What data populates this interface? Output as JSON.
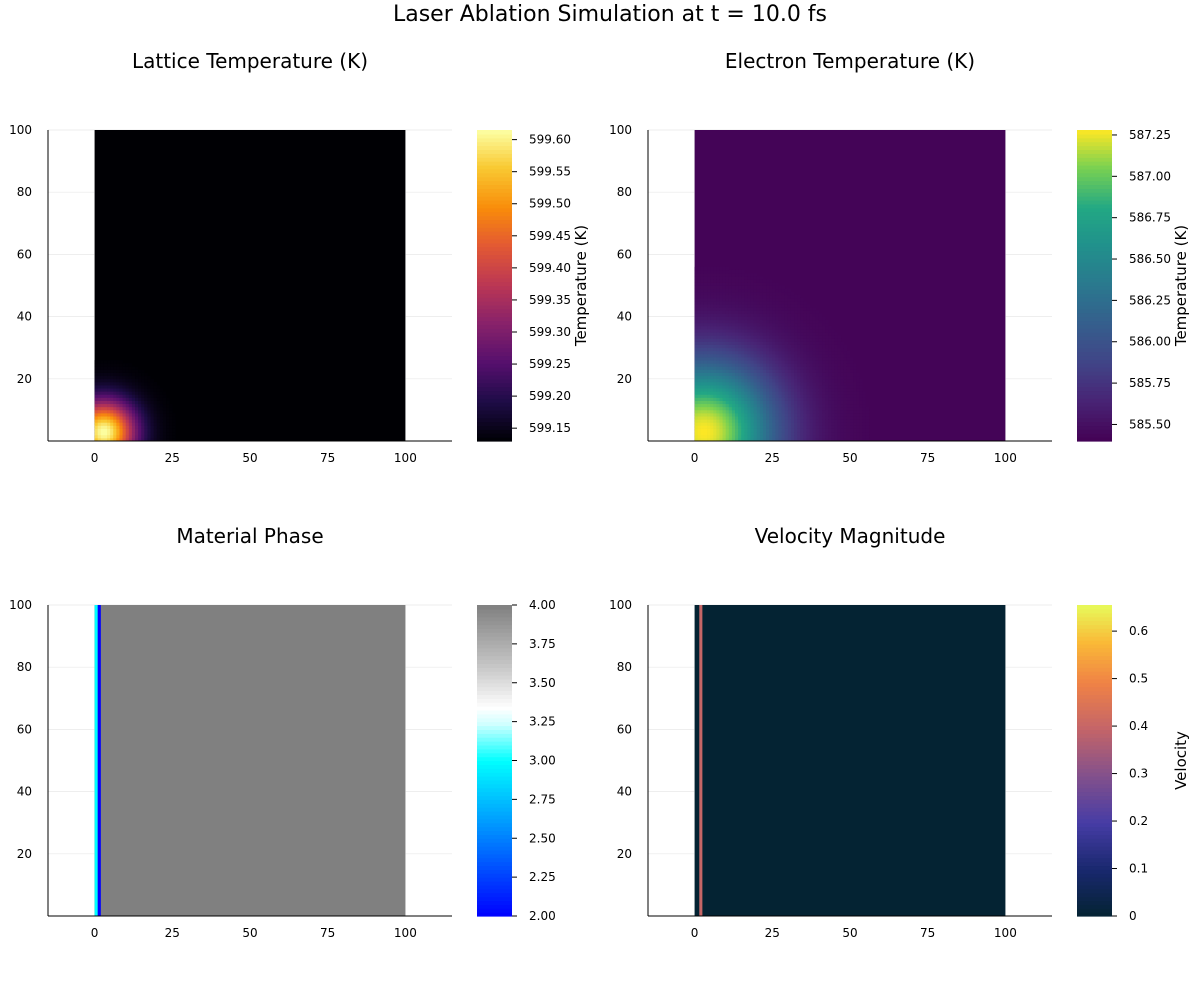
{
  "figure": {
    "title": "Laser Ablation Simulation at t = 10.0 fs"
  },
  "chart_data": [
    {
      "type": "heatmap",
      "title": "Lattice Temperature (K)",
      "colormap": "inferno",
      "x_ticks": [
        "0",
        "25",
        "50",
        "75",
        "100"
      ],
      "y_ticks": [
        "20",
        "40",
        "60",
        "80",
        "100"
      ],
      "xlim": [
        -15,
        115
      ],
      "ylim": [
        0,
        100
      ],
      "data_extent": {
        "x": [
          0,
          100
        ],
        "y": [
          0,
          100
        ]
      },
      "colorbar": {
        "label": "Temperature (K)",
        "min": 599.13,
        "max": 599.615,
        "ticks": [
          "599.15",
          "599.20",
          "599.25",
          "599.30",
          "599.35",
          "599.40",
          "599.45",
          "599.50",
          "599.55",
          "599.60"
        ]
      },
      "field": {
        "kind": "hotspot",
        "background": 599.13,
        "peak": 599.615,
        "center": [
          3,
          3
        ],
        "radius": 7
      }
    },
    {
      "type": "heatmap",
      "title": "Electron Temperature (K)",
      "colormap": "viridis",
      "x_ticks": [
        "0",
        "25",
        "50",
        "75",
        "100"
      ],
      "y_ticks": [
        "20",
        "40",
        "60",
        "80",
        "100"
      ],
      "xlim": [
        -15,
        115
      ],
      "ylim": [
        0,
        100
      ],
      "data_extent": {
        "x": [
          0,
          100
        ],
        "y": [
          0,
          100
        ]
      },
      "colorbar": {
        "label": "Temperature (K)",
        "min": 585.4,
        "max": 587.28,
        "ticks": [
          "585.50",
          "585.75",
          "586.00",
          "586.25",
          "586.50",
          "586.75",
          "587.00",
          "587.25"
        ]
      },
      "field": {
        "kind": "hotspot",
        "background": 585.42,
        "peak": 587.28,
        "center": [
          3,
          3
        ],
        "radius": 16
      }
    },
    {
      "type": "heatmap",
      "title": "Material Phase",
      "colormap": "phase",
      "x_ticks": [
        "0",
        "25",
        "50",
        "75",
        "100"
      ],
      "y_ticks": [
        "20",
        "40",
        "60",
        "80",
        "100"
      ],
      "xlim": [
        -15,
        115
      ],
      "ylim": [
        0,
        100
      ],
      "data_extent": {
        "x": [
          0,
          100
        ],
        "y": [
          0,
          100
        ]
      },
      "colorbar": {
        "label": "",
        "min": 2.0,
        "max": 4.0,
        "ticks": [
          "2.00",
          "2.25",
          "2.50",
          "2.75",
          "3.00",
          "3.25",
          "3.50",
          "3.75",
          "4.00"
        ]
      },
      "field": {
        "kind": "columns",
        "background": 4.0,
        "columns": [
          {
            "x": [
              0,
              1
            ],
            "value": 3.0
          },
          {
            "x": [
              1,
              2
            ],
            "value": 2.0
          }
        ]
      }
    },
    {
      "type": "heatmap",
      "title": "Velocity Magnitude",
      "colormap": "thermal",
      "x_ticks": [
        "0",
        "25",
        "50",
        "75",
        "100"
      ],
      "y_ticks": [
        "20",
        "40",
        "60",
        "80",
        "100"
      ],
      "xlim": [
        -15,
        115
      ],
      "ylim": [
        0,
        100
      ],
      "data_extent": {
        "x": [
          0,
          100
        ],
        "y": [
          0,
          100
        ]
      },
      "colorbar": {
        "label": "Velocity",
        "min": 0.0,
        "max": 0.655,
        "ticks": [
          "0",
          "0.1",
          "0.2",
          "0.3",
          "0.4",
          "0.5",
          "0.6"
        ]
      },
      "field": {
        "kind": "columns",
        "background": 0.0,
        "columns": [
          {
            "x": [
              1.5,
              2.5
            ],
            "value": 0.4
          }
        ]
      }
    }
  ]
}
